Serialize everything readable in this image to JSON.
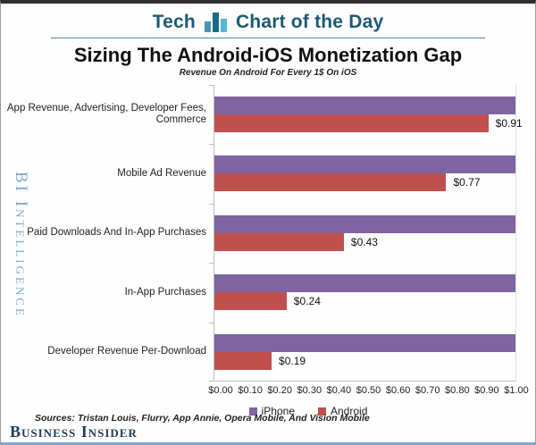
{
  "header": {
    "tag": "Tech",
    "title": "Chart of the Day",
    "icon_colors": [
      "#4a93ae",
      "#176c88",
      "#55b7cc"
    ]
  },
  "title": "Sizing The Android-iOS Monetization Gap",
  "subtitle": "Revenue On Android For Every 1$ On iOS",
  "watermark": "BI Intelligence",
  "footer": {
    "sources": "Sources: Tristan Louis, Flurry, App Annie, Opera Mobile, And Vision Mobile",
    "logo": "Business Insider"
  },
  "colors": {
    "iphone": "#8064a2",
    "android": "#c0504d",
    "header_teal": "#1a5a75",
    "watermark_blue": "#7fa9d2",
    "logo_navy": "#1e3d54"
  },
  "chart_data": {
    "type": "bar",
    "orientation": "horizontal",
    "title": "Sizing The Android-iOS Monetization Gap",
    "subtitle": "Revenue On Android For Every 1$ On iOS",
    "categories": [
      "App Revenue, Advertising, Developer Fees, Commerce",
      "Mobile Ad Revenue",
      "Paid Downloads And In-App Purchases",
      "In-App Purchases",
      "Developer Revenue Per-Download"
    ],
    "series": [
      {
        "name": "iPhone",
        "color": "#8064a2",
        "values": [
          1.0,
          1.0,
          1.0,
          1.0,
          1.0
        ]
      },
      {
        "name": "Android",
        "color": "#c0504d",
        "values": [
          0.91,
          0.77,
          0.43,
          0.24,
          0.19
        ]
      }
    ],
    "data_labels": [
      "$0.91",
      "$0.77",
      "$0.43",
      "$0.24",
      "$0.19"
    ],
    "xlim": [
      0,
      1.0
    ],
    "x_ticks": [
      "$0.00",
      "$0.10",
      "$0.20",
      "$0.30",
      "$0.40",
      "$0.50",
      "$0.60",
      "$0.70",
      "$0.80",
      "$0.90",
      "$1.00"
    ],
    "grid": false,
    "legend": [
      "iPhone",
      "Android"
    ],
    "legend_position": "bottom"
  }
}
